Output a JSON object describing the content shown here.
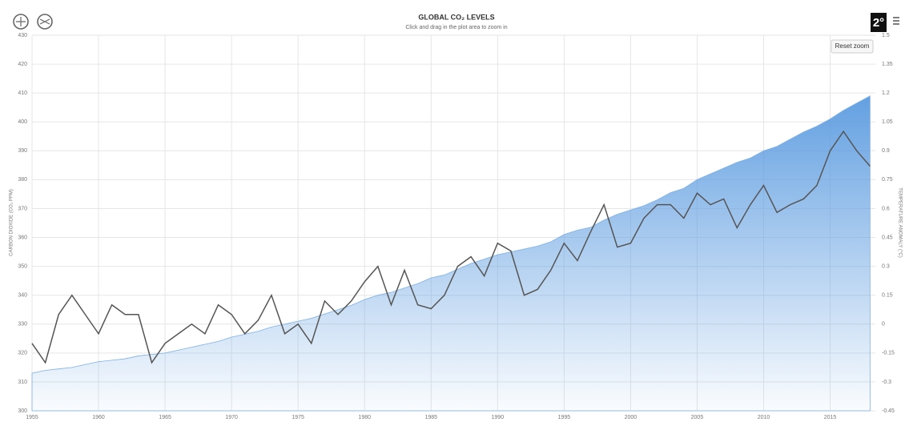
{
  "chart_data": {
    "type": "line",
    "title": "GLOBAL CO₂ LEVELS",
    "subtitle": "Click and drag in the plot area to zoom in",
    "y_label": "CARBON DIOXIDE (CO₂ PPM)",
    "y2_label": "TEMPERATURE ANOMALY (°C)",
    "button": "Reset zoom",
    "logo": "2°",
    "x": [
      1955,
      1956,
      1957,
      1958,
      1959,
      1960,
      1961,
      1962,
      1963,
      1964,
      1965,
      1966,
      1967,
      1968,
      1969,
      1970,
      1971,
      1972,
      1973,
      1974,
      1975,
      1976,
      1977,
      1978,
      1979,
      1980,
      1981,
      1982,
      1983,
      1984,
      1985,
      1986,
      1987,
      1988,
      1989,
      1990,
      1991,
      1992,
      1993,
      1994,
      1995,
      1996,
      1997,
      1998,
      1999,
      2000,
      2001,
      2002,
      2003,
      2004,
      2005,
      2006,
      2007,
      2008,
      2009,
      2010,
      2011,
      2012,
      2013,
      2014,
      2015,
      2016,
      2017,
      2018
    ],
    "series": [
      {
        "type": "area",
        "color": "#7cb0e6",
        "values": [
          313,
          314,
          314.5,
          315,
          316,
          317,
          317.5,
          318,
          319,
          319.5,
          320,
          321,
          322,
          323,
          324,
          325.5,
          326.5,
          327.5,
          329,
          330,
          331,
          332,
          333.5,
          335,
          336.5,
          338.5,
          340,
          341,
          342.5,
          344,
          346,
          347,
          349,
          351,
          352.5,
          354,
          355,
          356,
          357,
          358.5,
          361,
          362.5,
          363.5,
          366,
          368,
          369.5,
          371,
          373,
          375.5,
          377,
          380,
          382,
          384,
          386,
          387.5,
          390,
          391.5,
          394,
          396.5,
          398.5,
          401,
          404,
          406.5,
          409
        ]
      },
      {
        "type": "line",
        "color": "#555555",
        "axis": "y2",
        "values": [
          -0.1,
          -0.2,
          0.05,
          0.15,
          0.05,
          -0.05,
          0.1,
          0.05,
          0.05,
          -0.2,
          -0.1,
          -0.05,
          0.0,
          -0.05,
          0.1,
          0.05,
          -0.05,
          0.02,
          0.15,
          -0.05,
          0.0,
          -0.1,
          0.12,
          0.05,
          0.12,
          0.22,
          0.3,
          0.1,
          0.28,
          0.1,
          0.08,
          0.15,
          0.3,
          0.35,
          0.25,
          0.42,
          0.38,
          0.15,
          0.18,
          0.28,
          0.42,
          0.33,
          0.48,
          0.62,
          0.4,
          0.42,
          0.55,
          0.62,
          0.62,
          0.55,
          0.68,
          0.62,
          0.65,
          0.5,
          0.62,
          0.72,
          0.58,
          0.62,
          0.65,
          0.72,
          0.9,
          1.0,
          0.9,
          0.82
        ]
      }
    ],
    "xlim": [
      1955,
      2018.4
    ],
    "xticks": [
      1955,
      1960,
      1965,
      1970,
      1975,
      1980,
      1985,
      1990,
      1995,
      2000,
      2005,
      2010,
      2015
    ],
    "ylim": [
      300,
      430
    ],
    "yticks": [
      300,
      310,
      320,
      330,
      340,
      350,
      360,
      370,
      380,
      390,
      400,
      410,
      420,
      430
    ],
    "y2lim": [
      -0.45,
      1.5
    ],
    "y2ticks": [
      -0.45,
      -0.3,
      -0.15,
      0,
      0.15,
      0.3,
      0.45,
      0.6,
      0.75,
      0.9,
      1.05,
      1.2,
      1.35,
      1.5
    ],
    "grid": true
  }
}
